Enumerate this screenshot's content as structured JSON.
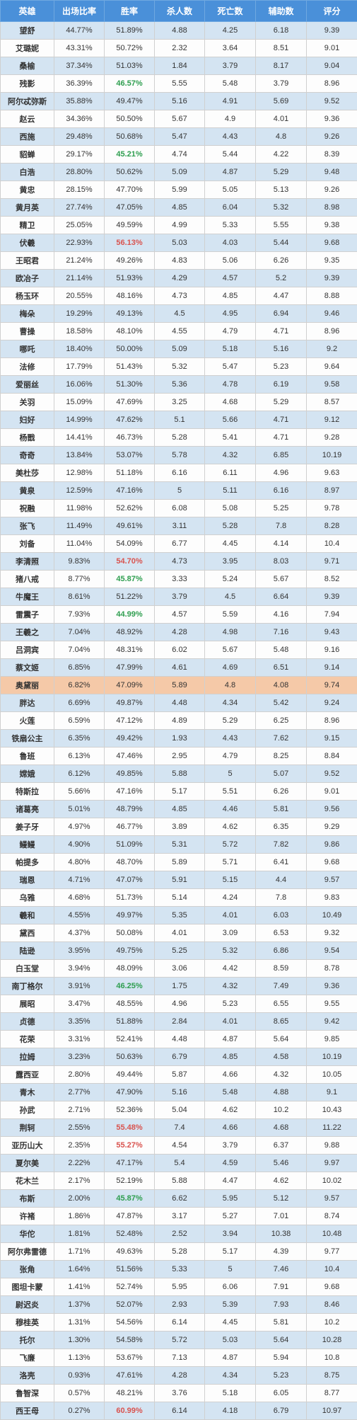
{
  "columns": [
    "英雄",
    "出场比率",
    "胜率",
    "杀人数",
    "死亡数",
    "辅助数",
    "评分"
  ],
  "col_widths": [
    "76px",
    "71px",
    "71px",
    "71px",
    "72px",
    "72px",
    "72px"
  ],
  "rows": [
    {
      "cells": [
        "望舒",
        "44.77%",
        "51.89%",
        "4.88",
        "4.25",
        "6.18",
        "9.39"
      ],
      "blue": true
    },
    {
      "cells": [
        "艾璐妮",
        "43.31%",
        "50.72%",
        "2.32",
        "3.64",
        "8.51",
        "9.01"
      ]
    },
    {
      "cells": [
        "桑榆",
        "37.34%",
        "51.03%",
        "1.84",
        "3.79",
        "8.17",
        "9.04"
      ],
      "blue": true
    },
    {
      "cells": [
        "残影",
        "36.39%",
        "46.57%",
        "5.55",
        "5.48",
        "3.79",
        "8.96"
      ],
      "winClass": "green"
    },
    {
      "cells": [
        "阿尔忒弥斯",
        "35.88%",
        "49.47%",
        "5.16",
        "4.91",
        "5.69",
        "9.52"
      ],
      "blue": true
    },
    {
      "cells": [
        "赵云",
        "34.36%",
        "50.50%",
        "5.67",
        "4.9",
        "4.01",
        "9.36"
      ]
    },
    {
      "cells": [
        "西施",
        "29.48%",
        "50.68%",
        "5.47",
        "4.43",
        "4.8",
        "9.26"
      ],
      "blue": true
    },
    {
      "cells": [
        "貂蝉",
        "29.17%",
        "45.21%",
        "4.74",
        "5.44",
        "4.22",
        "8.39"
      ],
      "winClass": "green"
    },
    {
      "cells": [
        "白浩",
        "28.80%",
        "50.62%",
        "5.09",
        "4.87",
        "5.29",
        "9.48"
      ],
      "blue": true
    },
    {
      "cells": [
        "黄忠",
        "28.15%",
        "47.70%",
        "5.99",
        "5.05",
        "5.13",
        "9.26"
      ]
    },
    {
      "cells": [
        "黄月英",
        "27.74%",
        "47.05%",
        "4.85",
        "6.04",
        "5.32",
        "8.98"
      ],
      "blue": true
    },
    {
      "cells": [
        "精卫",
        "25.05%",
        "49.59%",
        "4.99",
        "5.33",
        "5.55",
        "9.38"
      ]
    },
    {
      "cells": [
        "伏羲",
        "22.93%",
        "56.13%",
        "5.03",
        "4.03",
        "5.44",
        "9.68"
      ],
      "blue": true,
      "winClass": "red"
    },
    {
      "cells": [
        "王昭君",
        "21.24%",
        "49.26%",
        "4.83",
        "5.06",
        "6.26",
        "9.35"
      ]
    },
    {
      "cells": [
        "欧冶子",
        "21.14%",
        "51.93%",
        "4.29",
        "4.57",
        "5.2",
        "9.39"
      ],
      "blue": true
    },
    {
      "cells": [
        "杨玉环",
        "20.55%",
        "48.16%",
        "4.73",
        "4.85",
        "4.47",
        "8.88"
      ]
    },
    {
      "cells": [
        "梅朵",
        "19.29%",
        "49.13%",
        "4.5",
        "4.95",
        "6.94",
        "9.46"
      ],
      "blue": true
    },
    {
      "cells": [
        "曹操",
        "18.58%",
        "48.10%",
        "4.55",
        "4.79",
        "4.71",
        "8.96"
      ]
    },
    {
      "cells": [
        "哪吒",
        "18.40%",
        "50.00%",
        "5.09",
        "5.18",
        "5.16",
        "9.2"
      ],
      "blue": true
    },
    {
      "cells": [
        "法修",
        "17.79%",
        "51.43%",
        "5.32",
        "5.47",
        "5.23",
        "9.64"
      ]
    },
    {
      "cells": [
        "爱丽丝",
        "16.06%",
        "51.30%",
        "5.36",
        "4.78",
        "6.19",
        "9.58"
      ],
      "blue": true
    },
    {
      "cells": [
        "关羽",
        "15.09%",
        "47.69%",
        "3.25",
        "4.68",
        "5.29",
        "8.57"
      ]
    },
    {
      "cells": [
        "妇好",
        "14.99%",
        "47.62%",
        "5.1",
        "5.66",
        "4.71",
        "9.12"
      ],
      "blue": true
    },
    {
      "cells": [
        "杨戬",
        "14.41%",
        "46.73%",
        "5.28",
        "5.41",
        "4.71",
        "9.28"
      ]
    },
    {
      "cells": [
        "奇奇",
        "13.84%",
        "53.07%",
        "5.78",
        "4.32",
        "6.85",
        "10.19"
      ],
      "blue": true
    },
    {
      "cells": [
        "美杜莎",
        "12.98%",
        "51.18%",
        "6.16",
        "6.11",
        "4.96",
        "9.63"
      ]
    },
    {
      "cells": [
        "黄泉",
        "12.59%",
        "47.16%",
        "5",
        "5.11",
        "6.16",
        "8.97"
      ],
      "blue": true
    },
    {
      "cells": [
        "祝融",
        "11.98%",
        "52.62%",
        "6.08",
        "5.08",
        "5.25",
        "9.78"
      ]
    },
    {
      "cells": [
        "张飞",
        "11.49%",
        "49.61%",
        "3.11",
        "5.28",
        "7.8",
        "8.28"
      ],
      "blue": true
    },
    {
      "cells": [
        "刘备",
        "11.04%",
        "54.09%",
        "6.77",
        "4.45",
        "4.14",
        "10.4"
      ]
    },
    {
      "cells": [
        "李清照",
        "9.83%",
        "54.70%",
        "4.73",
        "3.95",
        "8.03",
        "9.71"
      ],
      "blue": true,
      "winClass": "red"
    },
    {
      "cells": [
        "猪八戒",
        "8.77%",
        "45.87%",
        "3.33",
        "5.24",
        "5.67",
        "8.52"
      ],
      "winClass": "green"
    },
    {
      "cells": [
        "牛魔王",
        "8.61%",
        "51.22%",
        "3.79",
        "4.5",
        "6.64",
        "9.39"
      ],
      "blue": true
    },
    {
      "cells": [
        "雷震子",
        "7.93%",
        "44.99%",
        "4.57",
        "5.59",
        "4.16",
        "7.94"
      ],
      "winClass": "green"
    },
    {
      "cells": [
        "王羲之",
        "7.04%",
        "48.92%",
        "4.28",
        "4.98",
        "7.16",
        "9.43"
      ],
      "blue": true
    },
    {
      "cells": [
        "吕洞宾",
        "7.04%",
        "48.31%",
        "6.02",
        "5.67",
        "5.48",
        "9.16"
      ]
    },
    {
      "cells": [
        "蔡文姬",
        "6.85%",
        "47.99%",
        "4.61",
        "4.69",
        "6.51",
        "9.14"
      ],
      "blue": true
    },
    {
      "cells": [
        "奥黛丽",
        "6.82%",
        "47.09%",
        "5.89",
        "4.8",
        "4.08",
        "9.74"
      ],
      "highlight": true
    },
    {
      "cells": [
        "胖达",
        "6.69%",
        "49.87%",
        "4.48",
        "4.34",
        "5.42",
        "9.24"
      ],
      "blue": true
    },
    {
      "cells": [
        "火莲",
        "6.59%",
        "47.12%",
        "4.89",
        "5.29",
        "6.25",
        "8.96"
      ]
    },
    {
      "cells": [
        "铁扇公主",
        "6.35%",
        "49.42%",
        "1.93",
        "4.43",
        "7.62",
        "9.15"
      ],
      "blue": true
    },
    {
      "cells": [
        "鲁班",
        "6.13%",
        "47.46%",
        "2.95",
        "4.79",
        "8.25",
        "8.84"
      ]
    },
    {
      "cells": [
        "嫦娥",
        "6.12%",
        "49.85%",
        "5.88",
        "5",
        "5.07",
        "9.52"
      ],
      "blue": true
    },
    {
      "cells": [
        "特斯拉",
        "5.66%",
        "47.16%",
        "5.17",
        "5.51",
        "6.26",
        "9.01"
      ]
    },
    {
      "cells": [
        "诸葛亮",
        "5.01%",
        "48.79%",
        "4.85",
        "4.46",
        "5.81",
        "9.56"
      ],
      "blue": true
    },
    {
      "cells": [
        "姜子牙",
        "4.97%",
        "46.77%",
        "3.89",
        "4.62",
        "6.35",
        "9.29"
      ]
    },
    {
      "cells": [
        "鳗鳗",
        "4.90%",
        "51.09%",
        "5.31",
        "5.72",
        "7.82",
        "9.86"
      ],
      "blue": true
    },
    {
      "cells": [
        "帕提多",
        "4.80%",
        "48.70%",
        "5.89",
        "5.71",
        "6.41",
        "9.68"
      ]
    },
    {
      "cells": [
        "瑞恩",
        "4.71%",
        "47.07%",
        "5.91",
        "5.15",
        "4.4",
        "9.57"
      ],
      "blue": true
    },
    {
      "cells": [
        "乌雅",
        "4.68%",
        "51.73%",
        "5.14",
        "4.24",
        "7.8",
        "9.83"
      ]
    },
    {
      "cells": [
        "羲和",
        "4.55%",
        "49.97%",
        "5.35",
        "4.01",
        "6.03",
        "10.49"
      ],
      "blue": true
    },
    {
      "cells": [
        "黛西",
        "4.37%",
        "50.08%",
        "4.01",
        "3.09",
        "6.53",
        "9.32"
      ]
    },
    {
      "cells": [
        "陆逊",
        "3.95%",
        "49.75%",
        "5.25",
        "5.32",
        "6.86",
        "9.54"
      ],
      "blue": true
    },
    {
      "cells": [
        "白玉堂",
        "3.94%",
        "48.09%",
        "3.06",
        "4.42",
        "8.59",
        "8.78"
      ]
    },
    {
      "cells": [
        "南丁格尔",
        "3.91%",
        "46.25%",
        "1.75",
        "4.32",
        "7.49",
        "9.36"
      ],
      "blue": true,
      "winClass": "green"
    },
    {
      "cells": [
        "展昭",
        "3.47%",
        "48.55%",
        "4.96",
        "5.23",
        "6.55",
        "9.55"
      ]
    },
    {
      "cells": [
        "贞德",
        "3.35%",
        "51.88%",
        "2.84",
        "4.01",
        "8.65",
        "9.42"
      ],
      "blue": true
    },
    {
      "cells": [
        "花荣",
        "3.31%",
        "52.41%",
        "4.48",
        "4.87",
        "5.64",
        "9.85"
      ]
    },
    {
      "cells": [
        "拉姆",
        "3.23%",
        "50.63%",
        "6.79",
        "4.85",
        "4.58",
        "10.19"
      ],
      "blue": true
    },
    {
      "cells": [
        "露西亚",
        "2.80%",
        "49.44%",
        "5.87",
        "4.66",
        "4.32",
        "10.05"
      ]
    },
    {
      "cells": [
        "青木",
        "2.77%",
        "47.90%",
        "5.16",
        "5.48",
        "4.88",
        "9.1"
      ],
      "blue": true
    },
    {
      "cells": [
        "孙武",
        "2.71%",
        "52.36%",
        "5.04",
        "4.62",
        "10.2",
        "10.43"
      ]
    },
    {
      "cells": [
        "荆轲",
        "2.55%",
        "55.48%",
        "7.4",
        "4.66",
        "4.68",
        "11.22"
      ],
      "blue": true,
      "winClass": "red"
    },
    {
      "cells": [
        "亚历山大",
        "2.35%",
        "55.27%",
        "4.54",
        "3.79",
        "6.37",
        "9.88"
      ],
      "winClass": "red"
    },
    {
      "cells": [
        "夏尔美",
        "2.22%",
        "47.17%",
        "5.4",
        "4.59",
        "5.46",
        "9.97"
      ],
      "blue": true
    },
    {
      "cells": [
        "花木兰",
        "2.17%",
        "52.19%",
        "5.88",
        "4.47",
        "4.62",
        "10.02"
      ]
    },
    {
      "cells": [
        "布斯",
        "2.00%",
        "45.87%",
        "6.62",
        "5.95",
        "5.12",
        "9.57"
      ],
      "blue": true,
      "winClass": "green"
    },
    {
      "cells": [
        "许褚",
        "1.86%",
        "47.87%",
        "3.17",
        "5.27",
        "7.01",
        "8.74"
      ]
    },
    {
      "cells": [
        "华佗",
        "1.81%",
        "52.48%",
        "2.52",
        "3.94",
        "10.38",
        "10.48"
      ],
      "blue": true
    },
    {
      "cells": [
        "阿尔弗雷德",
        "1.71%",
        "49.63%",
        "5.28",
        "5.17",
        "4.39",
        "9.77"
      ]
    },
    {
      "cells": [
        "张角",
        "1.64%",
        "51.56%",
        "5.33",
        "5",
        "7.46",
        "10.4"
      ],
      "blue": true
    },
    {
      "cells": [
        "图坦卡蒙",
        "1.41%",
        "52.74%",
        "5.95",
        "6.06",
        "7.91",
        "9.68"
      ]
    },
    {
      "cells": [
        "尉迟炎",
        "1.37%",
        "52.07%",
        "2.93",
        "5.39",
        "7.93",
        "8.46"
      ],
      "blue": true
    },
    {
      "cells": [
        "穆桂英",
        "1.31%",
        "54.56%",
        "6.14",
        "4.45",
        "5.81",
        "10.2"
      ]
    },
    {
      "cells": [
        "托尔",
        "1.30%",
        "54.58%",
        "5.72",
        "5.03",
        "5.64",
        "10.28"
      ],
      "blue": true
    },
    {
      "cells": [
        "飞廉",
        "1.13%",
        "53.67%",
        "7.13",
        "4.87",
        "5.94",
        "10.8"
      ]
    },
    {
      "cells": [
        "洛壳",
        "0.93%",
        "47.61%",
        "4.28",
        "4.34",
        "5.23",
        "8.75"
      ],
      "blue": true
    },
    {
      "cells": [
        "鲁智深",
        "0.57%",
        "48.21%",
        "3.76",
        "5.18",
        "6.05",
        "8.77"
      ]
    },
    {
      "cells": [
        "西王母",
        "0.27%",
        "60.99%",
        "6.14",
        "4.18",
        "6.79",
        "10.97"
      ],
      "blue": true,
      "winClass": "red"
    }
  ]
}
